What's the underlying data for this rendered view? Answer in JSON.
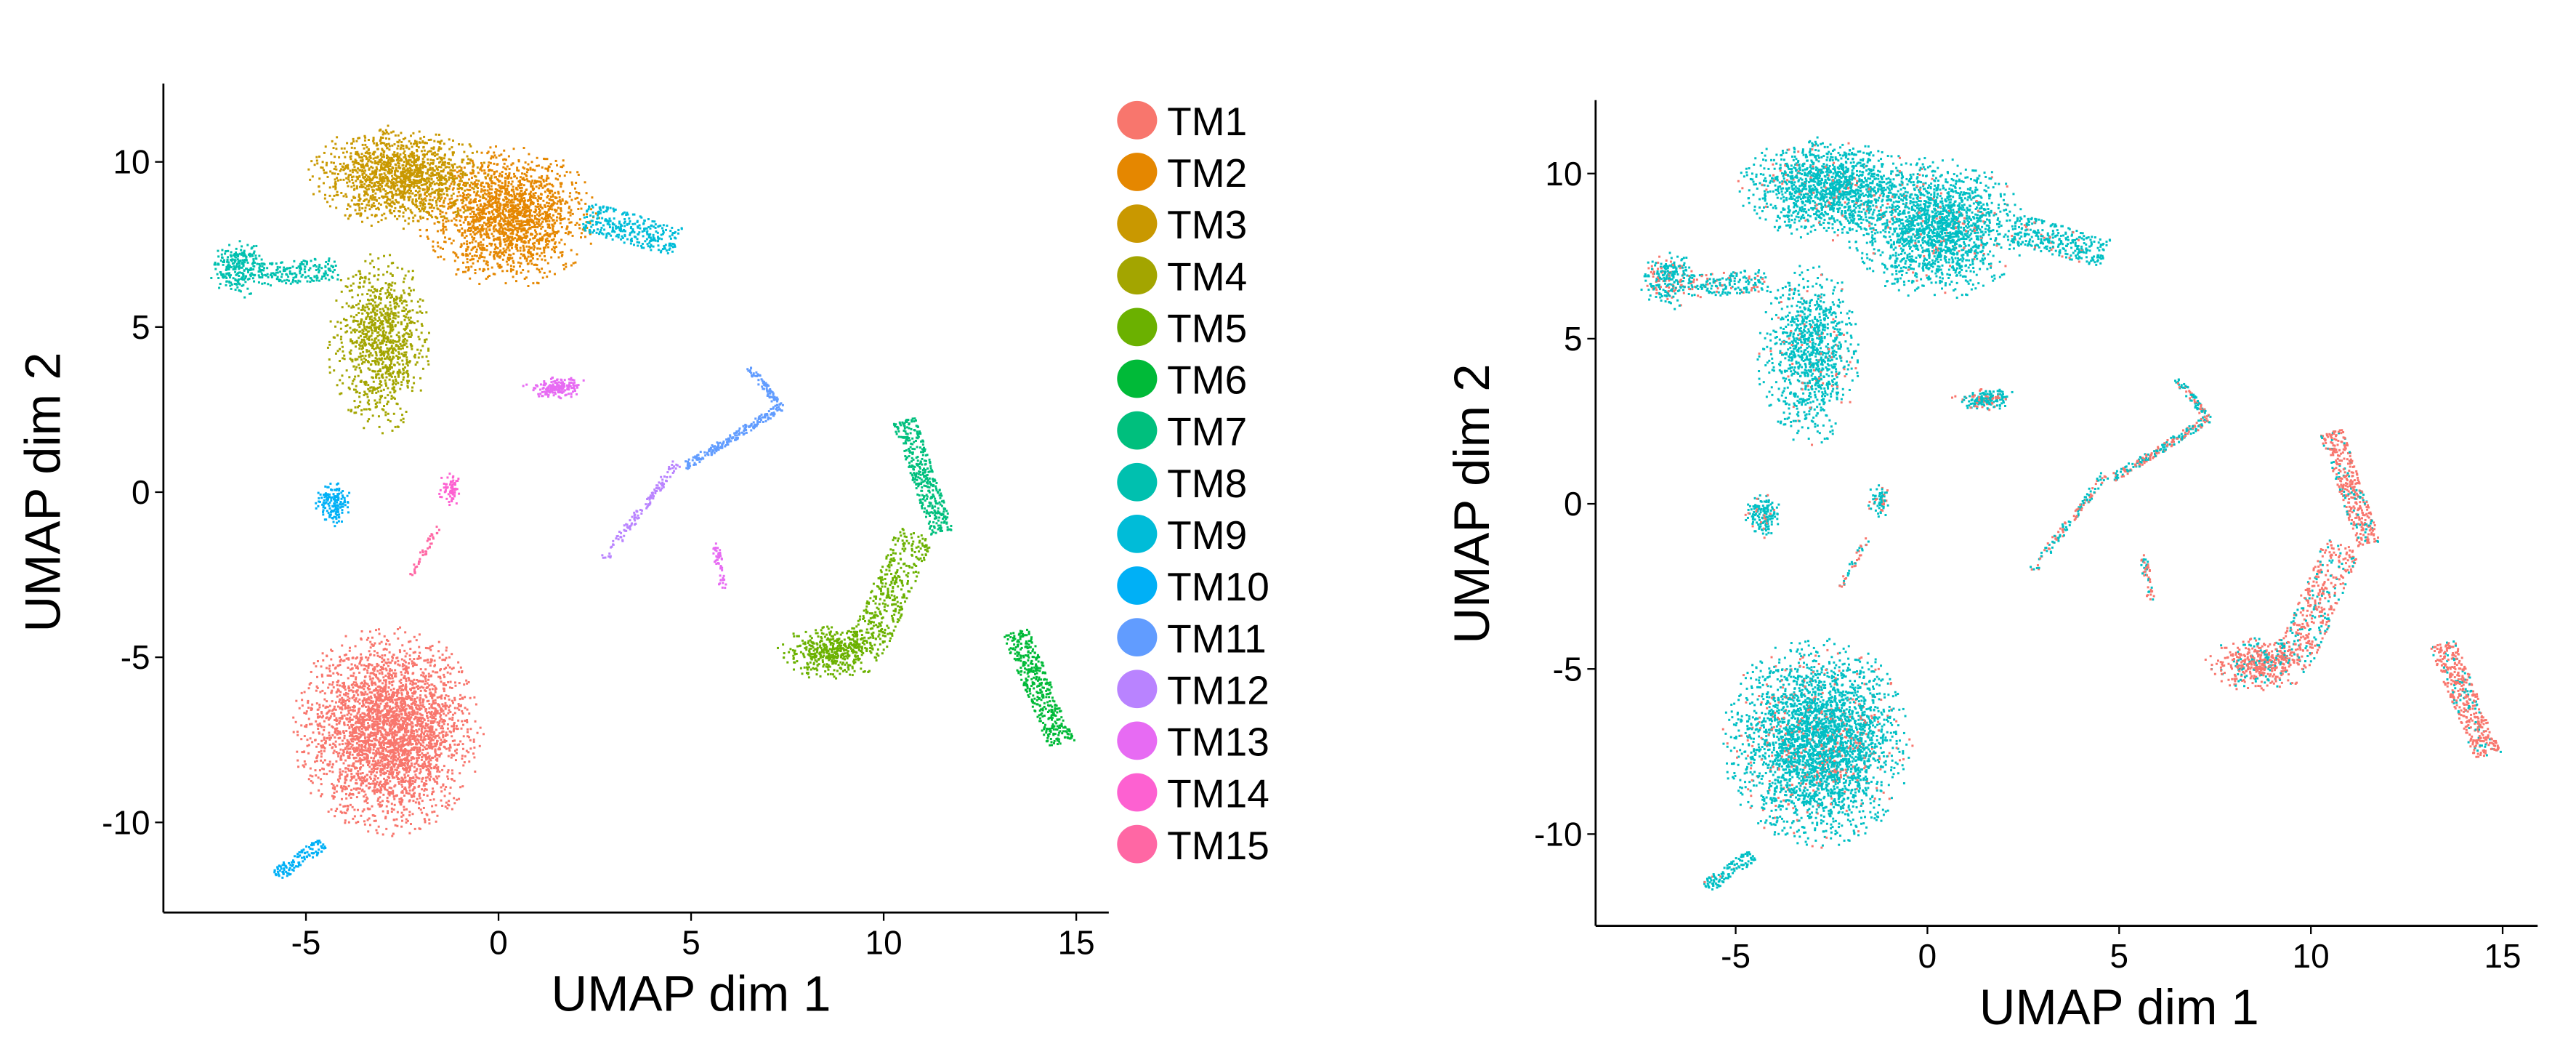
{
  "chart_data": [
    {
      "type": "scatter",
      "title": "",
      "xlabel": "UMAP dim 1",
      "ylabel": "UMAP dim 2",
      "xlim": [
        -8.6,
        15.9
      ],
      "ylim": [
        -12.7,
        12.4
      ],
      "xticks": [
        -5,
        0,
        5,
        10,
        15
      ],
      "yticks": [
        -10,
        -5,
        0,
        5,
        10
      ],
      "xtick_labels": [
        "-5",
        "0",
        "5",
        "10",
        "15"
      ],
      "ytick_labels": [
        "-10",
        "-5",
        "0",
        "5",
        "10"
      ],
      "grid": false,
      "legend_position": "right",
      "legend": [
        {
          "label": "TM1",
          "color": "#F8766D"
        },
        {
          "label": "TM2",
          "color": "#E58700"
        },
        {
          "label": "TM3",
          "color": "#C99800"
        },
        {
          "label": "TM4",
          "color": "#A3A500"
        },
        {
          "label": "TM5",
          "color": "#6BB100"
        },
        {
          "label": "TM6",
          "color": "#00BA38"
        },
        {
          "label": "TM7",
          "color": "#00BF7D"
        },
        {
          "label": "TM8",
          "color": "#00C0AF"
        },
        {
          "label": "TM9",
          "color": "#00BCD8"
        },
        {
          "label": "TM10",
          "color": "#00B0F6"
        },
        {
          "label": "TM11",
          "color": "#619CFF"
        },
        {
          "label": "TM12",
          "color": "#B983FF"
        },
        {
          "label": "TM13",
          "color": "#E76BF3"
        },
        {
          "label": "TM14",
          "color": "#FD61D1"
        },
        {
          "label": "TM15",
          "color": "#FF67A4"
        }
      ],
      "clusters": [
        {
          "cluster": "TM1",
          "shape": "blob",
          "cx": -2.9,
          "cy": -7.2,
          "sx": 1.25,
          "sy": 1.6,
          "n": 3200,
          "red_frac": 0.1
        },
        {
          "cluster": "TM2",
          "shape": "blob",
          "cx": 0.2,
          "cy": 8.4,
          "sx": 1.2,
          "sy": 1.1,
          "n": 1800,
          "red_frac": 0.05
        },
        {
          "cluster": "TM3",
          "shape": "blob",
          "cx": -2.6,
          "cy": 9.6,
          "sx": 1.2,
          "sy": 0.8,
          "n": 1400,
          "red_frac": 0.05
        },
        {
          "cluster": "TM4",
          "shape": "blob",
          "cx": -3.1,
          "cy": 4.6,
          "sx": 0.7,
          "sy": 1.4,
          "n": 1000,
          "red_frac": 0.06
        },
        {
          "cluster": "TM5",
          "shape": "blob",
          "cx": 8.6,
          "cy": -4.8,
          "sx": 0.7,
          "sy": 0.45,
          "n": 450,
          "red_frac": 0.75
        },
        {
          "cluster": "TM5",
          "shape": "line",
          "x0": 9.5,
          "y0": -4.8,
          "x1": 10.8,
          "y1": -1.2,
          "w": 0.5,
          "n": 400,
          "red_frac": 0.75
        },
        {
          "cluster": "TM6",
          "shape": "line",
          "x0": 13.4,
          "y0": -4.2,
          "x1": 14.6,
          "y1": -7.6,
          "w": 0.35,
          "n": 420,
          "red_frac": 0.8
        },
        {
          "cluster": "TM7",
          "shape": "line",
          "x0": 10.5,
          "y0": 2.2,
          "x1": 11.5,
          "y1": -1.2,
          "w": 0.3,
          "n": 380,
          "red_frac": 0.8
        },
        {
          "cluster": "TM8",
          "shape": "blob",
          "cx": -6.8,
          "cy": 6.8,
          "sx": 0.4,
          "sy": 0.45,
          "n": 260,
          "red_frac": 0.3
        },
        {
          "cluster": "TM8",
          "shape": "line",
          "x0": -6.3,
          "y0": 6.6,
          "x1": -4.2,
          "y1": 6.8,
          "w": 0.35,
          "n": 180,
          "red_frac": 0.2
        },
        {
          "cluster": "TM9",
          "shape": "line",
          "x0": 2.2,
          "y0": 8.4,
          "x1": 4.6,
          "y1": 7.6,
          "w": 0.45,
          "n": 300,
          "red_frac": 0.05
        },
        {
          "cluster": "TM10",
          "shape": "blob",
          "cx": -4.3,
          "cy": -0.3,
          "sx": 0.25,
          "sy": 0.35,
          "n": 150,
          "red_frac": 0.1
        },
        {
          "cluster": "TM10",
          "shape": "line",
          "x0": -5.8,
          "y0": -11.6,
          "x1": -4.6,
          "y1": -10.6,
          "w": 0.2,
          "n": 120,
          "red_frac": 0.05
        },
        {
          "cluster": "TM11",
          "shape": "line",
          "x0": 4.8,
          "y0": 0.8,
          "x1": 7.3,
          "y1": 2.6,
          "w": 0.12,
          "n": 200,
          "red_frac": 0.4
        },
        {
          "cluster": "TM11",
          "shape": "line",
          "x0": 7.3,
          "y0": 2.6,
          "x1": 6.5,
          "y1": 3.8,
          "w": 0.1,
          "n": 80,
          "red_frac": 0.4
        },
        {
          "cluster": "TM12",
          "shape": "line",
          "x0": 2.7,
          "y0": -2.0,
          "x1": 4.6,
          "y1": 0.9,
          "w": 0.12,
          "n": 120,
          "red_frac": 0.5
        },
        {
          "cluster": "TM13",
          "shape": "blob",
          "cx": 1.5,
          "cy": 3.2,
          "sx": 0.45,
          "sy": 0.18,
          "n": 180,
          "red_frac": 0.2
        },
        {
          "cluster": "TM13",
          "shape": "line",
          "x0": 5.6,
          "y0": -1.5,
          "x1": 5.8,
          "y1": -2.9,
          "w": 0.1,
          "n": 50,
          "red_frac": 0.6
        },
        {
          "cluster": "TM14",
          "shape": "blob",
          "cx": -1.3,
          "cy": 0.1,
          "sx": 0.15,
          "sy": 0.3,
          "n": 70,
          "red_frac": 0.3
        },
        {
          "cluster": "TM15",
          "shape": "line",
          "x0": -2.3,
          "y0": -2.5,
          "x1": -1.6,
          "y1": -1.0,
          "w": 0.08,
          "n": 40,
          "red_frac": 0.5
        }
      ]
    },
    {
      "type": "scatter",
      "title": "",
      "xlabel": "UMAP dim 1",
      "ylabel": "UMAP dim 2",
      "xlim": [
        -8.6,
        15.9
      ],
      "ylim": [
        -12.7,
        12.4
      ],
      "xtick_labels": [
        "-5",
        "0",
        "5",
        "10",
        "15"
      ],
      "ytick_labels": [
        "-10",
        "-5",
        "0",
        "5",
        "10"
      ],
      "grid": false,
      "legend": "none",
      "colors": {
        "group_a": "#F8766D",
        "group_b": "#00BFC4"
      }
    }
  ]
}
